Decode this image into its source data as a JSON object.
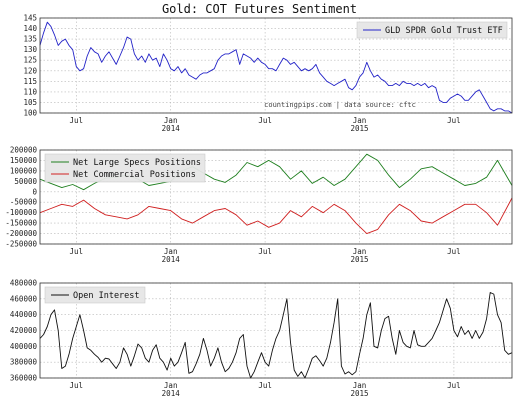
{
  "chart_data": [
    {
      "type": "line",
      "title": "Gold: COT Futures Sentiment",
      "ylim": [
        100,
        145
      ],
      "yticks": [
        100,
        105,
        110,
        115,
        120,
        125,
        130,
        135,
        140,
        145
      ],
      "ytick_labels": [
        "100",
        "105",
        "110",
        "115",
        "120",
        "125",
        "130",
        "135",
        "140",
        "145"
      ],
      "xlim": [
        0,
        130
      ],
      "xticks": [
        {
          "x": 10,
          "label": "Jul",
          "sub": ""
        },
        {
          "x": 36,
          "label": "Jan",
          "sub": "2014"
        },
        {
          "x": 62,
          "label": "Jul",
          "sub": ""
        },
        {
          "x": 88,
          "label": "Jan",
          "sub": "2015"
        },
        {
          "x": 114,
          "label": "Jul",
          "sub": ""
        }
      ],
      "grid": true,
      "legend_position": "top-right",
      "watermark": "countingpips.com | data source: cftc",
      "series": [
        {
          "name": "GLD SPDR Gold Trust ETF",
          "color": "#2424c8",
          "x": [
            0,
            1,
            2,
            3,
            4,
            5,
            6,
            7,
            8,
            9,
            10,
            11,
            12,
            13,
            14,
            15,
            16,
            17,
            18,
            19,
            20,
            21,
            22,
            23,
            24,
            25,
            26,
            27,
            28,
            29,
            30,
            31,
            32,
            33,
            34,
            35,
            36,
            37,
            38,
            39,
            40,
            41,
            42,
            43,
            44,
            45,
            46,
            47,
            48,
            49,
            50,
            51,
            52,
            53,
            54,
            55,
            56,
            57,
            58,
            59,
            60,
            61,
            62,
            63,
            64,
            65,
            66,
            67,
            68,
            69,
            70,
            71,
            72,
            73,
            74,
            75,
            76,
            77,
            78,
            79,
            80,
            81,
            82,
            83,
            84,
            85,
            86,
            87,
            88,
            89,
            90,
            91,
            92,
            93,
            94,
            95,
            96,
            97,
            98,
            99,
            100,
            101,
            102,
            103,
            104,
            105,
            106,
            107,
            108,
            109,
            110,
            111,
            112,
            113,
            114,
            115,
            116,
            117,
            118,
            119,
            120,
            121,
            122,
            123,
            124,
            125,
            126,
            127,
            128,
            129,
            130
          ],
          "values": [
            132,
            138,
            143,
            141,
            137,
            132,
            134,
            135,
            132,
            130,
            122,
            120,
            121,
            127,
            131,
            129,
            128,
            124,
            127,
            129,
            126,
            123,
            127,
            131,
            136,
            135,
            128,
            125,
            127,
            124,
            128,
            125,
            126,
            122,
            128,
            125,
            121,
            120,
            122,
            119,
            121,
            118,
            117,
            116,
            118,
            119,
            119,
            120,
            121,
            125,
            127,
            128,
            128,
            129,
            130,
            123,
            128,
            127,
            126,
            124,
            126,
            124,
            123,
            121,
            121,
            120,
            123,
            126,
            125,
            123,
            124,
            122,
            120,
            121,
            120,
            121,
            123,
            119,
            117,
            115,
            114,
            113,
            114,
            115,
            116,
            112,
            111,
            113,
            117,
            119,
            124,
            120,
            117,
            118,
            116,
            115,
            113,
            113,
            114,
            113,
            115,
            114,
            114,
            113,
            114,
            113,
            114,
            112,
            113,
            112,
            106,
            105,
            105,
            107,
            108,
            109,
            108,
            106,
            106,
            108,
            110,
            111,
            108,
            105,
            102,
            101,
            102,
            102,
            101,
            101,
            100
          ]
        }
      ]
    },
    {
      "type": "line",
      "ylim": [
        -250000,
        200000
      ],
      "yticks": [
        -250000,
        -200000,
        -150000,
        -100000,
        -50000,
        0,
        50000,
        100000,
        150000,
        200000
      ],
      "ytick_labels": [
        "-250000",
        "-200000",
        "-150000",
        "-100000",
        "-50000",
        "0",
        "50000",
        "100000",
        "150000",
        "200000"
      ],
      "xlim": [
        0,
        130
      ],
      "xticks": [
        {
          "x": 10,
          "label": "Jul",
          "sub": ""
        },
        {
          "x": 36,
          "label": "Jan",
          "sub": "2014"
        },
        {
          "x": 62,
          "label": "Jul",
          "sub": ""
        },
        {
          "x": 88,
          "label": "Jan",
          "sub": "2015"
        },
        {
          "x": 114,
          "label": "Jul",
          "sub": ""
        }
      ],
      "grid": true,
      "legend_position": "top-left",
      "series": [
        {
          "name": "Net Large Specs Positions",
          "color": "#1f7f1f",
          "x": [
            0,
            3,
            6,
            9,
            12,
            15,
            18,
            21,
            24,
            27,
            30,
            33,
            36,
            39,
            42,
            45,
            48,
            51,
            54,
            57,
            60,
            63,
            66,
            69,
            72,
            75,
            78,
            81,
            84,
            87,
            90,
            93,
            96,
            99,
            102,
            105,
            108,
            111,
            114,
            117,
            120,
            123,
            126,
            130
          ],
          "values": [
            60000,
            40000,
            20000,
            35000,
            10000,
            40000,
            65000,
            70000,
            80000,
            60000,
            30000,
            40000,
            50000,
            100000,
            120000,
            90000,
            60000,
            45000,
            80000,
            140000,
            120000,
            150000,
            120000,
            60000,
            100000,
            40000,
            70000,
            30000,
            60000,
            120000,
            180000,
            150000,
            80000,
            20000,
            60000,
            110000,
            120000,
            90000,
            60000,
            30000,
            40000,
            70000,
            150000,
            30000
          ]
        },
        {
          "name": "Net Commercial Positions",
          "color": "#d02020",
          "x": [
            0,
            3,
            6,
            9,
            12,
            15,
            18,
            21,
            24,
            27,
            30,
            33,
            36,
            39,
            42,
            45,
            48,
            51,
            54,
            57,
            60,
            63,
            66,
            69,
            72,
            75,
            78,
            81,
            84,
            87,
            90,
            93,
            96,
            99,
            102,
            105,
            108,
            111,
            114,
            117,
            120,
            123,
            126,
            130
          ],
          "values": [
            -100000,
            -80000,
            -60000,
            -70000,
            -40000,
            -80000,
            -110000,
            -120000,
            -130000,
            -110000,
            -70000,
            -80000,
            -90000,
            -130000,
            -150000,
            -120000,
            -90000,
            -80000,
            -110000,
            -160000,
            -140000,
            -170000,
            -150000,
            -90000,
            -120000,
            -70000,
            -100000,
            -60000,
            -90000,
            -150000,
            -200000,
            -180000,
            -110000,
            -60000,
            -90000,
            -140000,
            -150000,
            -120000,
            -90000,
            -60000,
            -60000,
            -100000,
            -160000,
            -30000
          ]
        }
      ]
    },
    {
      "type": "line",
      "ylim": [
        360000,
        480000
      ],
      "yticks": [
        360000,
        380000,
        400000,
        420000,
        440000,
        460000,
        480000
      ],
      "ytick_labels": [
        "360000",
        "380000",
        "400000",
        "420000",
        "440000",
        "460000",
        "480000"
      ],
      "xlim": [
        0,
        130
      ],
      "xticks": [
        {
          "x": 10,
          "label": "Jul",
          "sub": ""
        },
        {
          "x": 36,
          "label": "Jan",
          "sub": "2014"
        },
        {
          "x": 62,
          "label": "Jul",
          "sub": ""
        },
        {
          "x": 88,
          "label": "Jan",
          "sub": "2015"
        },
        {
          "x": 114,
          "label": "Jul",
          "sub": ""
        }
      ],
      "grid": true,
      "legend_position": "top-left",
      "series": [
        {
          "name": "Open Interest",
          "color": "#111111",
          "x": [
            0,
            1,
            2,
            3,
            4,
            5,
            6,
            7,
            8,
            9,
            10,
            11,
            12,
            13,
            14,
            15,
            16,
            17,
            18,
            19,
            20,
            21,
            22,
            23,
            24,
            25,
            26,
            27,
            28,
            29,
            30,
            31,
            32,
            33,
            34,
            35,
            36,
            37,
            38,
            39,
            40,
            41,
            42,
            43,
            44,
            45,
            46,
            47,
            48,
            49,
            50,
            51,
            52,
            53,
            54,
            55,
            56,
            57,
            58,
            59,
            60,
            61,
            62,
            63,
            64,
            65,
            66,
            67,
            68,
            69,
            70,
            71,
            72,
            73,
            74,
            75,
            76,
            77,
            78,
            79,
            80,
            81,
            82,
            83,
            84,
            85,
            86,
            87,
            88,
            89,
            90,
            91,
            92,
            93,
            94,
            95,
            96,
            97,
            98,
            99,
            100,
            101,
            102,
            103,
            104,
            105,
            106,
            107,
            108,
            109,
            110,
            111,
            112,
            113,
            114,
            115,
            116,
            117,
            118,
            119,
            120,
            121,
            122,
            123,
            124,
            125,
            126,
            127,
            128,
            129,
            130
          ],
          "values": [
            410000,
            415000,
            425000,
            440000,
            446000,
            420000,
            372000,
            375000,
            390000,
            410000,
            425000,
            440000,
            420000,
            398000,
            395000,
            390000,
            386000,
            380000,
            385000,
            384000,
            378000,
            372000,
            380000,
            398000,
            390000,
            375000,
            388000,
            403000,
            398000,
            385000,
            380000,
            395000,
            402000,
            385000,
            380000,
            370000,
            385000,
            375000,
            380000,
            392000,
            405000,
            366000,
            368000,
            378000,
            390000,
            410000,
            395000,
            375000,
            385000,
            398000,
            380000,
            368000,
            372000,
            380000,
            392000,
            410000,
            415000,
            375000,
            360000,
            368000,
            380000,
            392000,
            380000,
            375000,
            395000,
            410000,
            420000,
            440000,
            460000,
            405000,
            370000,
            362000,
            368000,
            360000,
            372000,
            385000,
            388000,
            382000,
            375000,
            385000,
            405000,
            430000,
            460000,
            375000,
            365000,
            368000,
            364000,
            368000,
            390000,
            410000,
            440000,
            455000,
            400000,
            398000,
            420000,
            435000,
            438000,
            410000,
            390000,
            420000,
            405000,
            400000,
            398000,
            420000,
            402000,
            400000,
            400000,
            405000,
            410000,
            420000,
            430000,
            445000,
            460000,
            448000,
            420000,
            412000,
            425000,
            415000,
            420000,
            410000,
            420000,
            410000,
            418000,
            435000,
            468000,
            466000,
            440000,
            430000,
            395000,
            390000,
            392000
          ]
        }
      ]
    }
  ]
}
